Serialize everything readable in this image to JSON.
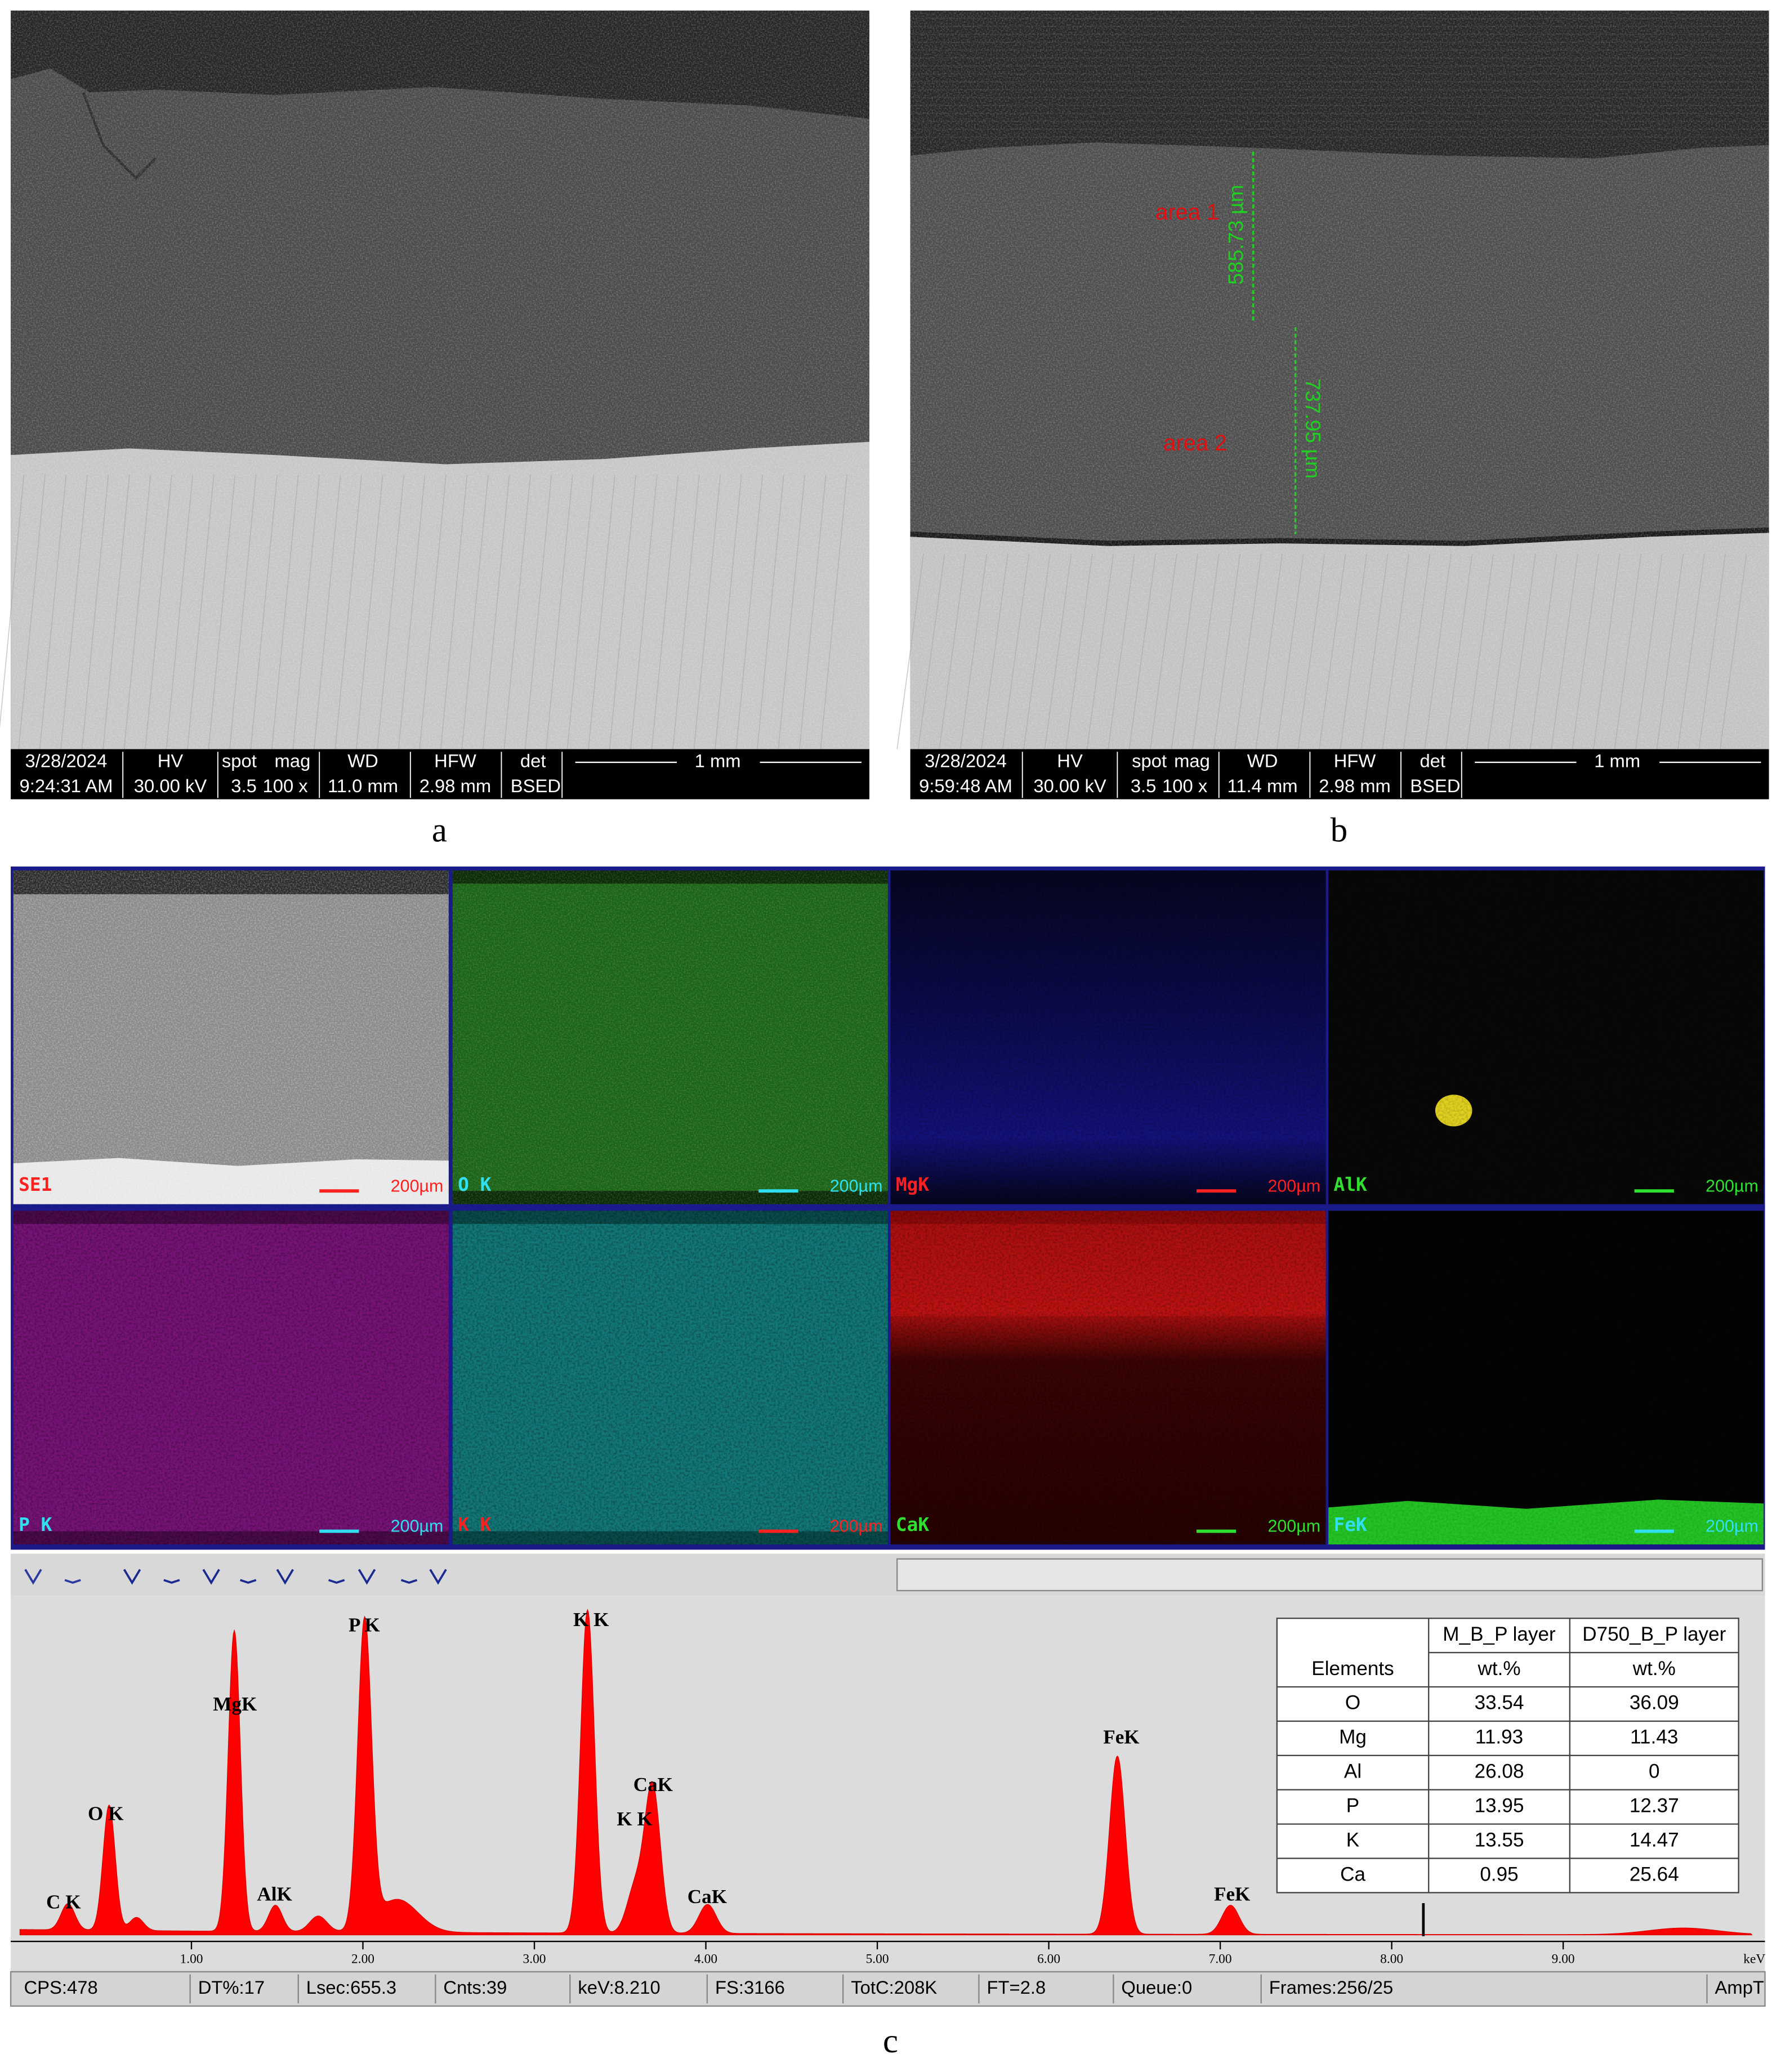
{
  "panels": [
    {
      "label": "a",
      "info": {
        "date": "3/28/2024",
        "time": "9:24:31 AM",
        "hv_label": "HV",
        "hv": "30.00 kV",
        "spot_label": "spot",
        "spot": "3.5",
        "mag_label": "mag",
        "mag": "100 x",
        "wd_label": "WD",
        "wd": "11.0 mm",
        "hfw_label": "HFW",
        "hfw": "2.98 mm",
        "det_label": "det",
        "det": "BSED",
        "scale": "1 mm"
      }
    },
    {
      "label": "b",
      "info": {
        "date": "3/28/2024",
        "time": "9:59:48 AM",
        "hv_label": "HV",
        "hv": "30.00 kV",
        "spot_label": "spot",
        "spot": "3.5",
        "mag_label": "mag",
        "mag": "100 x",
        "wd_label": "WD",
        "wd": "11.4 mm",
        "hfw_label": "HFW",
        "hfw": "2.98 mm",
        "det_label": "det",
        "det": "BSED",
        "scale": "1 mm"
      },
      "annotations": [
        "area 1",
        "area 2"
      ],
      "measurements": [
        "585.73 µm",
        "737.95 µm"
      ]
    }
  ],
  "maps": [
    {
      "element": "SE1",
      "scale": "200µm"
    },
    {
      "element": "O K",
      "scale": "200µm"
    },
    {
      "element": "MgK",
      "scale": "200µm"
    },
    {
      "element": "AlK",
      "scale": "200µm"
    },
    {
      "element": "P K",
      "scale": "200µm"
    },
    {
      "element": "K K",
      "scale": "200µm"
    },
    {
      "element": "CaK",
      "scale": "200µm"
    },
    {
      "element": "FeK",
      "scale": "200µm"
    }
  ],
  "spectrum": {
    "peak_labels": [
      "C K",
      "O K",
      "MgK",
      "AlK",
      "P K",
      "K K",
      "CaK",
      "K K",
      "CaK",
      "FeK",
      "FeK"
    ],
    "x_tick_labels": [
      "1.00",
      "2.00",
      "3.00",
      "4.00",
      "5.00",
      "6.00",
      "7.00",
      "8.00",
      "9.00"
    ],
    "x_unit": "keV"
  },
  "table": {
    "row_header": "Elements",
    "columns": [
      "M_B_P layer",
      "D750_B_P layer"
    ],
    "units": [
      "wt.%",
      "wt.%"
    ],
    "rows": [
      [
        "O",
        "33.54",
        "36.09"
      ],
      [
        "Mg",
        "11.93",
        "11.43"
      ],
      [
        "Al",
        "26.08",
        "0"
      ],
      [
        "P",
        "13.95",
        "12.37"
      ],
      [
        "K",
        "13.55",
        "14.47"
      ],
      [
        "Ca",
        "0.95",
        "25.64"
      ]
    ]
  },
  "status_bar": [
    "CPS:478",
    "DT%:17",
    "Lsec:655.3",
    "Cnts:39",
    "keV:8.210",
    "FS:3166",
    "TotC:208K",
    "FT=2.8",
    "Queue:0",
    "Frames:256/25",
    "AmpT"
  ],
  "caption": "c"
}
